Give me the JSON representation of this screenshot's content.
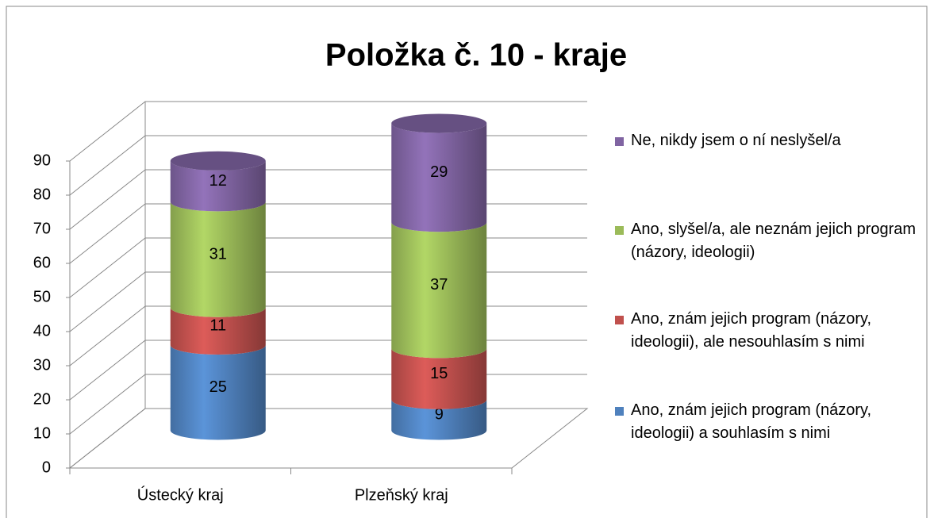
{
  "chart_data": {
    "type": "bar3d-stacked-cylinder",
    "title": "Položka č. 10 - kraje",
    "categories": [
      "Ústecký kraj",
      "Plzeňský kraj"
    ],
    "series": [
      {
        "name": "Ano, znám jejich program (názory, ideologii) a souhlasím s nimi",
        "color": "#4f81bd",
        "values": [
          25,
          9
        ]
      },
      {
        "name": "Ano, znám jejich program (názory, ideologii), ale nesouhlasím s nimi",
        "color": "#c0504d",
        "values": [
          11,
          15
        ]
      },
      {
        "name": "Ano, slyšel/a, ale neznám jejich program (názory, ideologii)",
        "color": "#9bbb59",
        "values": [
          31,
          37
        ]
      },
      {
        "name": "Ne, nikdy jsem o ní neslyšel/a",
        "color": "#8064a2",
        "values": [
          12,
          29
        ]
      }
    ],
    "ylim": [
      0,
      90
    ],
    "yticks": [
      0,
      10,
      20,
      30,
      40,
      50,
      60,
      70,
      80,
      90
    ],
    "grid": true,
    "legend": "right"
  }
}
